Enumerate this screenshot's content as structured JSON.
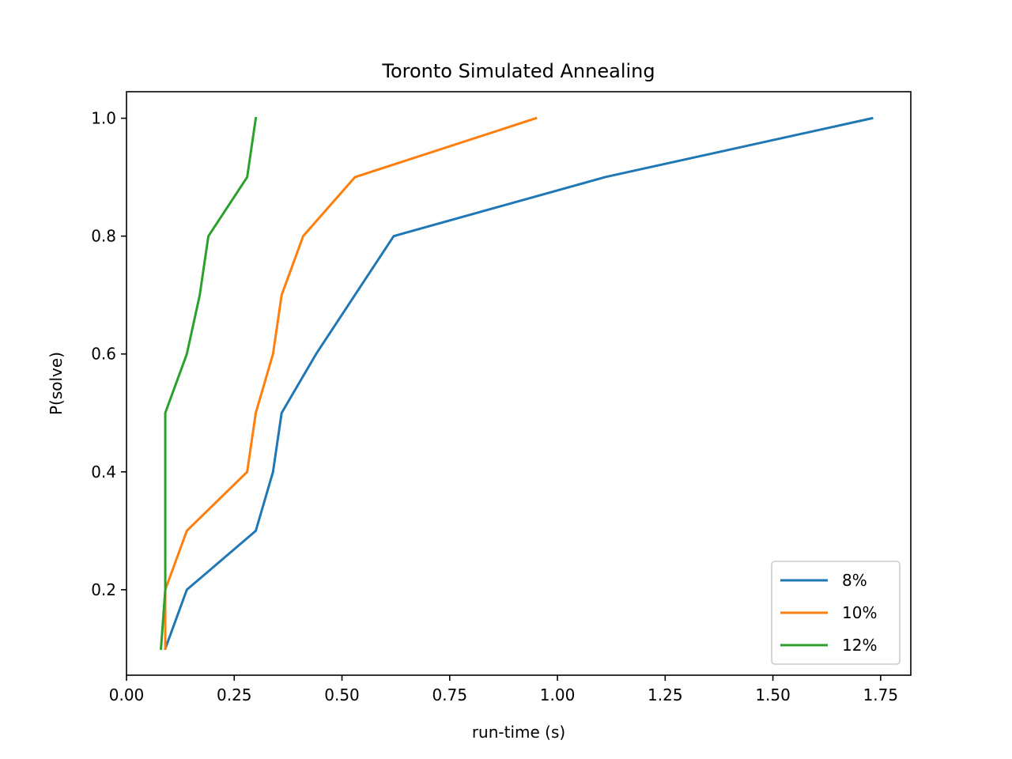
{
  "chart_data": {
    "type": "line",
    "title": "Toronto  Simulated Annealing",
    "xlabel": "run-time (s)",
    "ylabel": "P(solve)",
    "xlim": [
      0.0,
      1.82
    ],
    "ylim": [
      0.055,
      1.045
    ],
    "xticks": [
      0.0,
      0.25,
      0.5,
      0.75,
      1.0,
      1.25,
      1.5,
      1.75
    ],
    "xtick_labels": [
      "0.00",
      "0.25",
      "0.50",
      "0.75",
      "1.00",
      "1.25",
      "1.50",
      "1.75"
    ],
    "yticks": [
      0.2,
      0.4,
      0.6,
      0.8,
      1.0
    ],
    "ytick_labels": [
      "0.2",
      "0.4",
      "0.6",
      "0.8",
      "1.0"
    ],
    "grid": false,
    "legend_position": "bottom-right",
    "series": [
      {
        "name": "8%",
        "color": "#1f77b4",
        "x": [
          0.09,
          0.14,
          0.3,
          0.34,
          0.36,
          0.44,
          0.62,
          1.11,
          1.73
        ],
        "y": [
          0.1,
          0.2,
          0.3,
          0.4,
          0.5,
          0.6,
          0.8,
          0.9,
          1.0
        ]
      },
      {
        "name": "10%",
        "color": "#ff7f0e",
        "x": [
          0.09,
          0.09,
          0.14,
          0.28,
          0.3,
          0.34,
          0.36,
          0.41,
          0.53,
          0.95
        ],
        "y": [
          0.1,
          0.2,
          0.3,
          0.4,
          0.5,
          0.6,
          0.7,
          0.8,
          0.9,
          1.0
        ]
      },
      {
        "name": "12%",
        "color": "#2ca02c",
        "x": [
          0.08,
          0.09,
          0.09,
          0.09,
          0.14,
          0.17,
          0.19,
          0.28,
          0.3
        ],
        "y": [
          0.1,
          0.2,
          0.3,
          0.5,
          0.6,
          0.7,
          0.8,
          0.9,
          1.0
        ]
      }
    ]
  }
}
